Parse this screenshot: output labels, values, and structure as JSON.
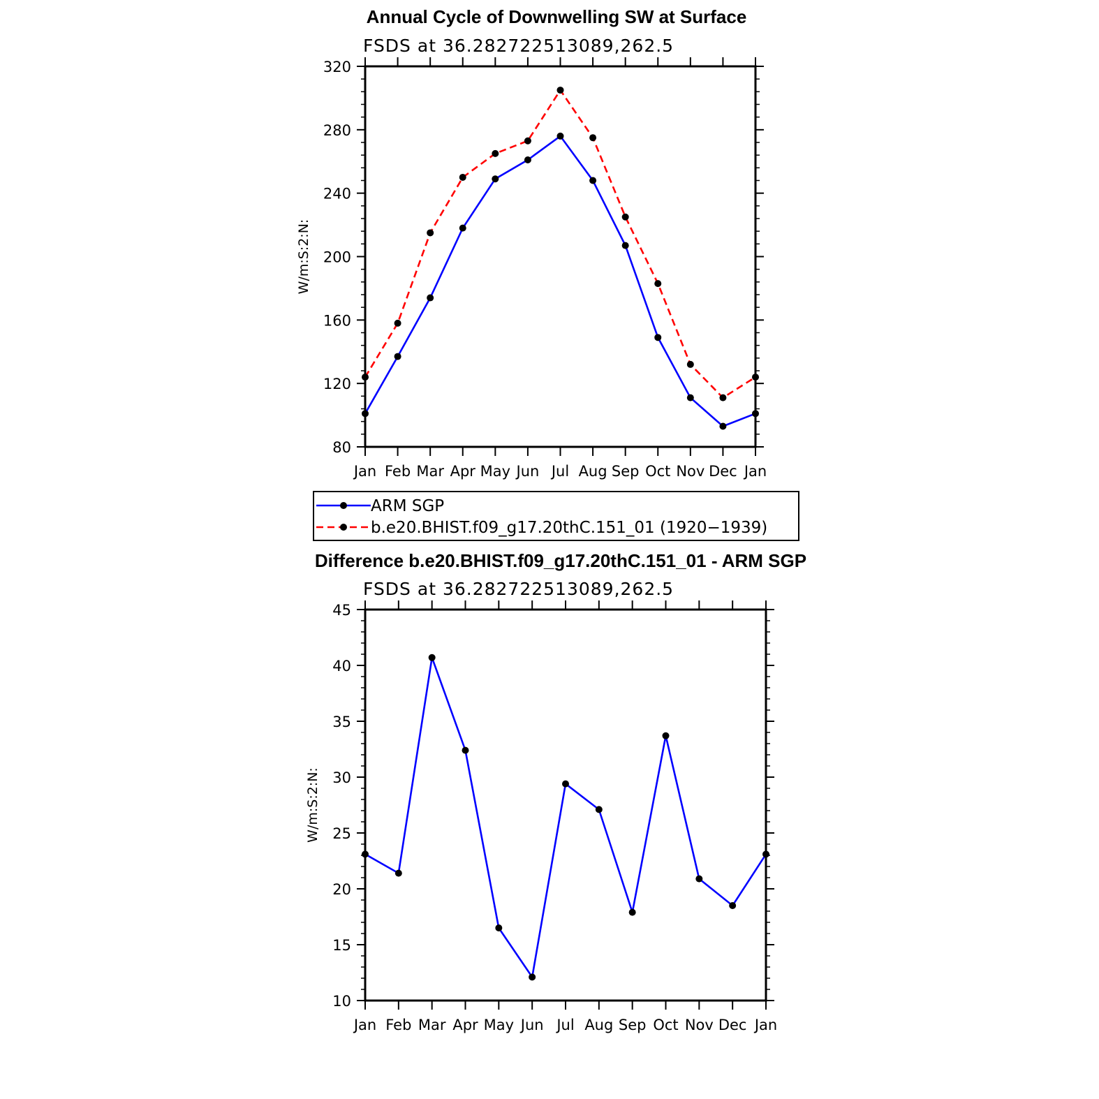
{
  "chart_data": [
    {
      "type": "line",
      "title": "Annual Cycle of Downwelling SW at Surface",
      "subtitle": "FSDS at 36.282722513089,262.5",
      "ylabel": "W/m:S:2:N:",
      "xlabel": "",
      "ylim": [
        80,
        320
      ],
      "y_ticks": [
        "80",
        "120",
        "160",
        "200",
        "240",
        "280",
        "320"
      ],
      "categories": [
        "Jan",
        "Feb",
        "Mar",
        "Apr",
        "May",
        "Jun",
        "Jul",
        "Aug",
        "Sep",
        "Oct",
        "Nov",
        "Dec",
        "Jan"
      ],
      "series": [
        {
          "name": "ARM SGP",
          "color": "#0000ff",
          "dash": "solid",
          "values": [
            101,
            137,
            174,
            218,
            249,
            261,
            276,
            248,
            207,
            149,
            111,
            93,
            101
          ]
        },
        {
          "name": "b.e20.BHIST.f09_g17.20thC.151_01 (1920−1939)",
          "color": "#ff0000",
          "dash": "dashed",
          "values": [
            124,
            158,
            215,
            250,
            265,
            273,
            305,
            275,
            225,
            183,
            132,
            111,
            124
          ]
        }
      ],
      "legend": "bottom"
    },
    {
      "type": "line",
      "title": "Difference b.e20.BHIST.f09_g17.20thC.151_01 - ARM SGP",
      "subtitle": "FSDS at 36.282722513089,262.5",
      "ylabel": "W/m:S:2:N:",
      "xlabel": "",
      "ylim": [
        10,
        45
      ],
      "y_ticks": [
        "10",
        "15",
        "20",
        "25",
        "30",
        "35",
        "40",
        "45"
      ],
      "categories": [
        "Jan",
        "Feb",
        "Mar",
        "Apr",
        "May",
        "Jun",
        "Jul",
        "Aug",
        "Sep",
        "Oct",
        "Nov",
        "Dec",
        "Jan"
      ],
      "series": [
        {
          "color": "#0000ff",
          "dash": "solid",
          "values": [
            23.1,
            21.4,
            40.7,
            32.4,
            16.5,
            12.1,
            29.4,
            27.1,
            17.9,
            33.7,
            20.9,
            18.5,
            23.1
          ]
        }
      ]
    }
  ]
}
